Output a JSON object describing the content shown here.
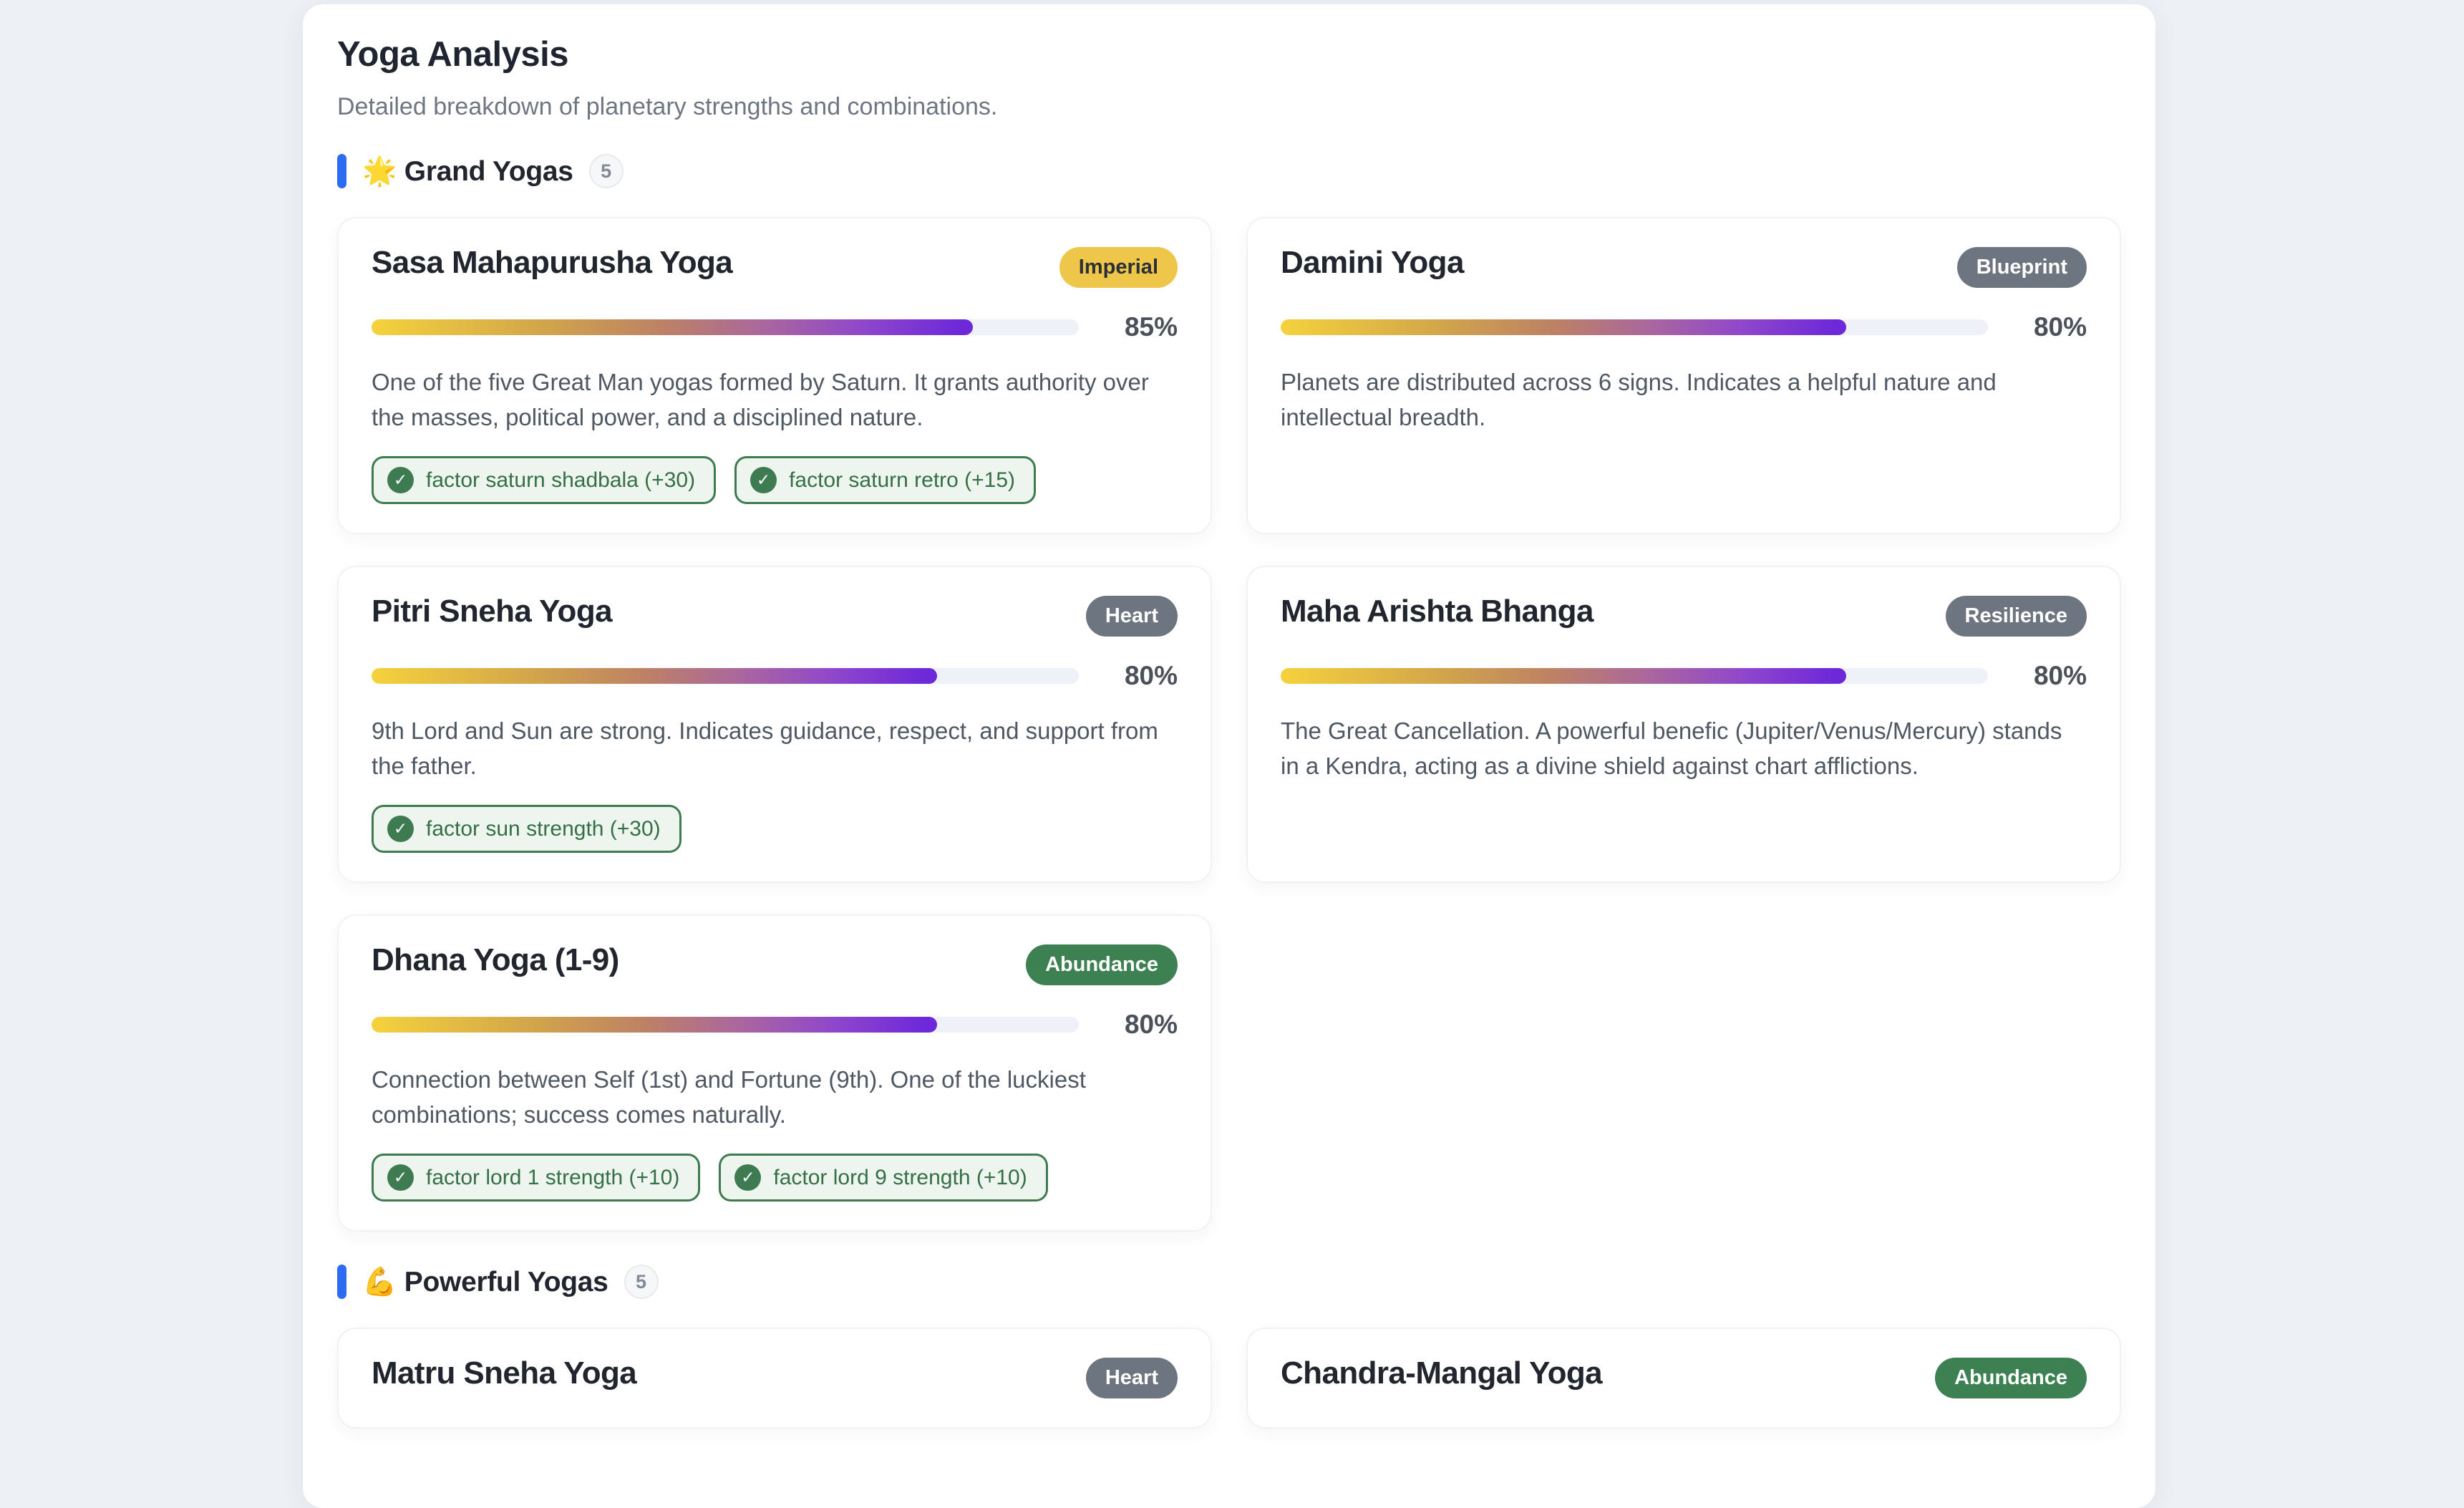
{
  "header": {
    "title": "Yoga Analysis",
    "subtitle": "Detailed breakdown of planetary strengths and combinations."
  },
  "colors": {
    "page_background": "#edf0f4",
    "panel_background": "#ffffff",
    "section_accent_blue": "#2c6bf2",
    "badge_gold": "#eec64a",
    "badge_gray": "#6d7680",
    "badge_green": "#3d8152",
    "progress_track": "#eef1f7",
    "progress_gradient_start": "#f5d23c",
    "progress_gradient_end": "#6d28d9",
    "tag_green": "#3e7b50"
  },
  "sections": [
    {
      "emoji": "🌟",
      "title": "Grand Yogas",
      "count": "5",
      "cards": [
        {
          "name": "Sasa Mahapurusha Yoga",
          "badge": {
            "label": "Imperial",
            "variant": "gold"
          },
          "percent": 85,
          "percent_label": "85%",
          "description": "One of the five Great Man yogas formed by Saturn. It grants authority over the masses, political power, and a disciplined nature.",
          "tags": [
            "factor saturn shadbala (+30)",
            "factor saturn retro (+15)"
          ]
        },
        {
          "name": "Damini Yoga",
          "badge": {
            "label": "Blueprint",
            "variant": "gray"
          },
          "percent": 80,
          "percent_label": "80%",
          "description": "Planets are distributed across 6 signs. Indicates a helpful nature and intellectual breadth.",
          "tags": []
        },
        {
          "name": "Pitri Sneha Yoga",
          "badge": {
            "label": "Heart",
            "variant": "gray"
          },
          "percent": 80,
          "percent_label": "80%",
          "description": "9th Lord and Sun are strong. Indicates guidance, respect, and support from the father.",
          "tags": [
            "factor sun strength (+30)"
          ]
        },
        {
          "name": "Maha Arishta Bhanga",
          "badge": {
            "label": "Resilience",
            "variant": "gray"
          },
          "percent": 80,
          "percent_label": "80%",
          "description": "The Great Cancellation. A powerful benefic (Jupiter/Venus/Mercury) stands in a Kendra, acting as a divine shield against chart afflictions.",
          "tags": []
        },
        {
          "name": "Dhana Yoga (1-9)",
          "badge": {
            "label": "Abundance",
            "variant": "green"
          },
          "percent": 80,
          "percent_label": "80%",
          "description": "Connection between Self (1st) and Fortune (9th). One of the luckiest combinations; success comes naturally.",
          "tags": [
            "factor lord 1 strength (+10)",
            "factor lord 9 strength (+10)"
          ]
        }
      ]
    },
    {
      "emoji": "💪",
      "title": "Powerful Yogas",
      "count": "5",
      "cards": [
        {
          "name": "Matru Sneha Yoga",
          "badge": {
            "label": "Heart",
            "variant": "gray"
          }
        },
        {
          "name": "Chandra-Mangal Yoga",
          "badge": {
            "label": "Abundance",
            "variant": "green"
          }
        }
      ]
    }
  ]
}
